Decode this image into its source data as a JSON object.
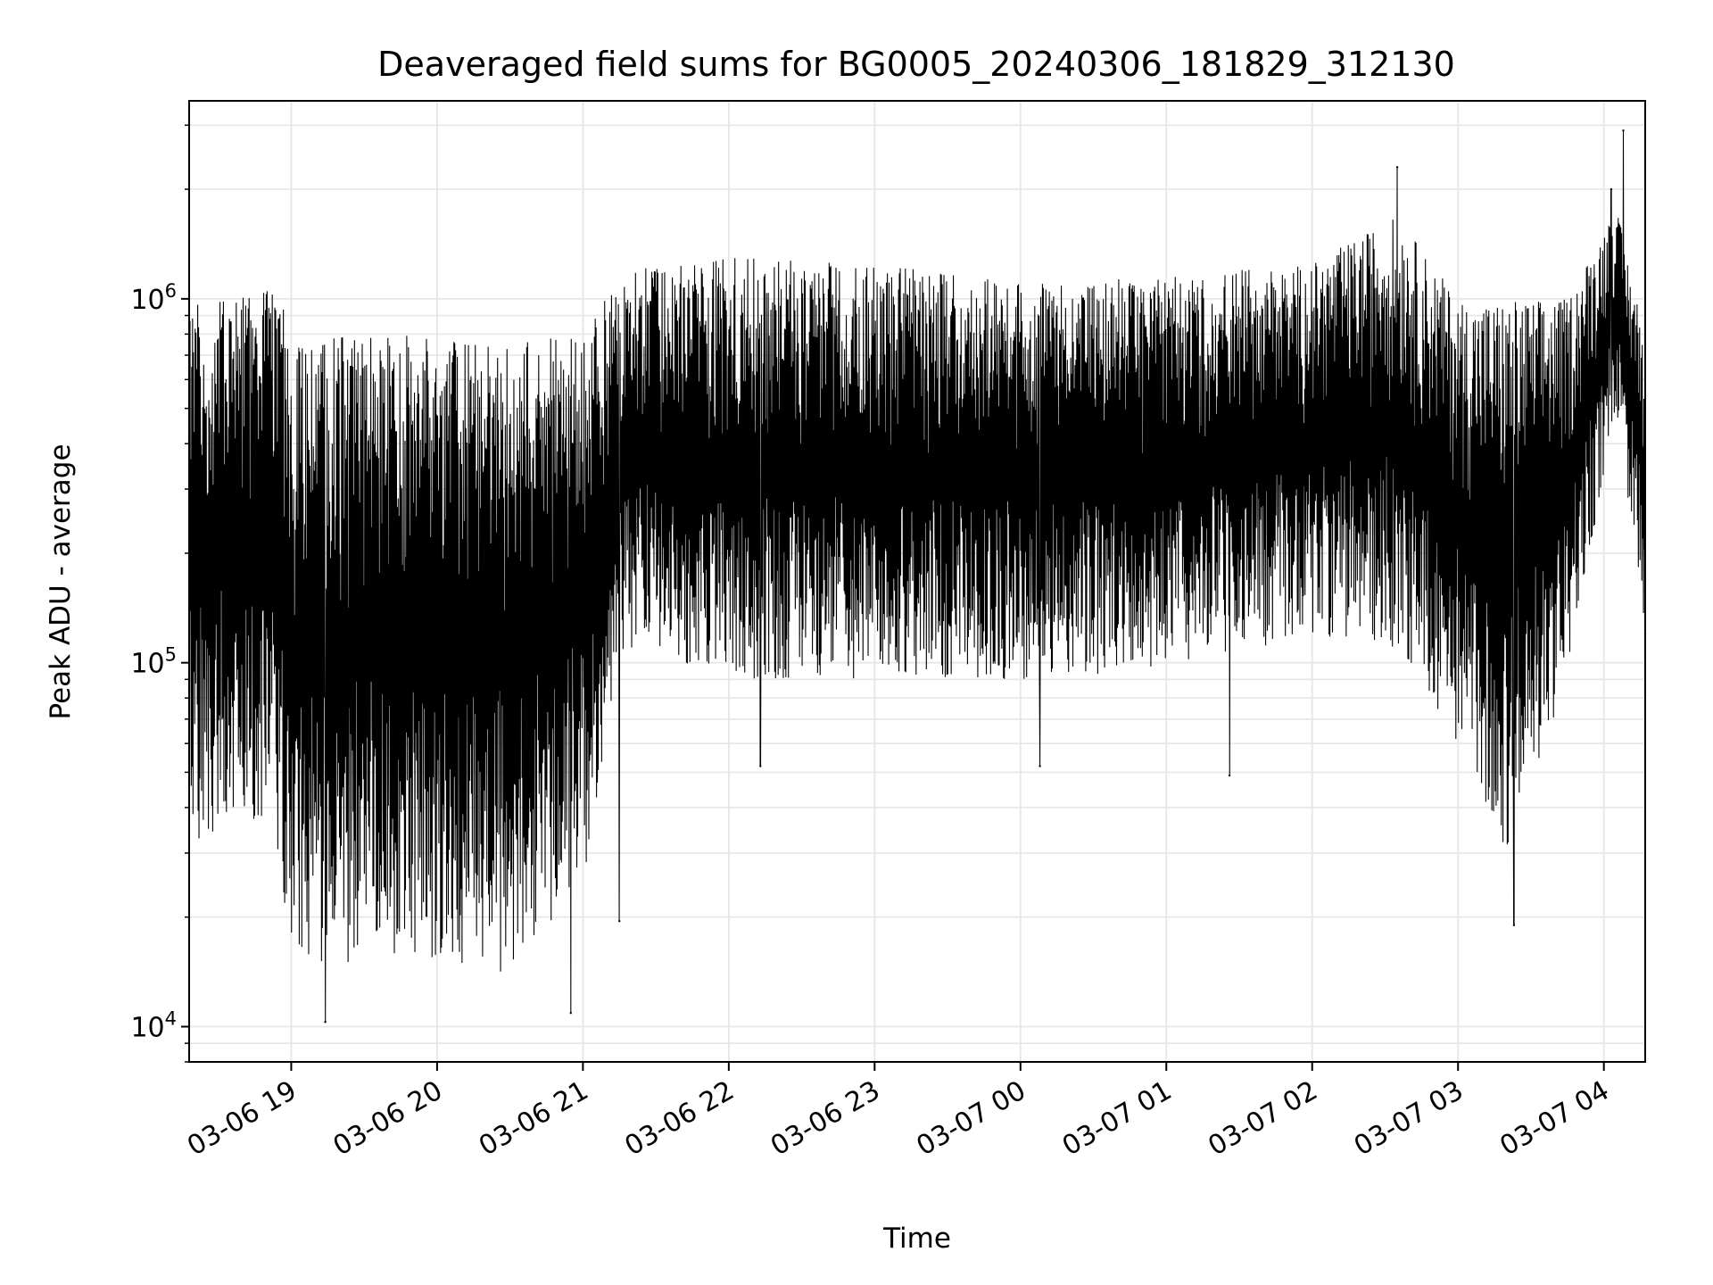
{
  "chart_data": {
    "type": "line",
    "title": "Deaveraged field sums for BG0005_20240306_181829_312130",
    "xlabel": "Time",
    "ylabel": "Peak ADU - average",
    "y_scale": "log",
    "ylim": [
      8000,
      3500000
    ],
    "xlim": [
      "2024-03-06 18:18",
      "2024-03-07 04:17"
    ],
    "grid": true,
    "x_ticks": [
      "03-06 19",
      "03-06 20",
      "03-06 21",
      "03-06 22",
      "03-06 23",
      "03-07 00",
      "03-07 01",
      "03-07 02",
      "03-07 03",
      "03-07 04"
    ],
    "y_ticks": [
      10000,
      100000,
      1000000
    ],
    "y_tick_labels": [
      {
        "base": "10",
        "exp": "4"
      },
      {
        "base": "10",
        "exp": "5"
      },
      {
        "base": "10",
        "exp": "6"
      }
    ],
    "series_color": "#000000",
    "envelope": [
      {
        "t": "2024-03-06 18:18",
        "low": 30000,
        "high": 950000
      },
      {
        "t": "2024-03-06 18:40",
        "low": 40000,
        "high": 1050000
      },
      {
        "t": "2024-03-06 18:55",
        "low": 30000,
        "high": 1100000
      },
      {
        "t": "2024-03-06 19:00",
        "low": 15000,
        "high": 750000
      },
      {
        "t": "2024-03-06 19:30",
        "low": 15000,
        "high": 800000
      },
      {
        "t": "2024-03-06 20:00",
        "low": 15000,
        "high": 800000
      },
      {
        "t": "2024-03-06 20:30",
        "low": 14000,
        "high": 750000
      },
      {
        "t": "2024-03-06 21:00",
        "low": 25000,
        "high": 800000
      },
      {
        "t": "2024-03-06 21:17",
        "low": 110000,
        "high": 1200000
      },
      {
        "t": "2024-03-06 22:00",
        "low": 90000,
        "high": 1300000
      },
      {
        "t": "2024-03-06 23:00",
        "low": 90000,
        "high": 1250000
      },
      {
        "t": "2024-03-07 00:00",
        "low": 90000,
        "high": 1100000
      },
      {
        "t": "2024-03-07 01:00",
        "low": 95000,
        "high": 1150000
      },
      {
        "t": "2024-03-07 02:00",
        "low": 120000,
        "high": 1250000
      },
      {
        "t": "2024-03-07 02:35",
        "low": 110000,
        "high": 1700000
      },
      {
        "t": "2024-03-07 03:00",
        "low": 60000,
        "high": 1000000
      },
      {
        "t": "2024-03-07 03:20",
        "low": 30000,
        "high": 1000000
      },
      {
        "t": "2024-03-07 03:45",
        "low": 90000,
        "high": 1000000
      },
      {
        "t": "2024-03-07 04:05",
        "low": 500000,
        "high": 1800000
      },
      {
        "t": "2024-03-07 04:17",
        "low": 120000,
        "high": 800000
      }
    ],
    "notable_points": [
      {
        "t": "2024-03-06 19:14",
        "y": 10300
      },
      {
        "t": "2024-03-06 20:55",
        "y": 10900
      },
      {
        "t": "2024-03-06 21:15",
        "y": 19500
      },
      {
        "t": "2024-03-06 22:13",
        "y": 52000
      },
      {
        "t": "2024-03-07 00:08",
        "y": 52000
      },
      {
        "t": "2024-03-07 01:26",
        "y": 49000
      },
      {
        "t": "2024-03-07 02:35",
        "y": 2300000
      },
      {
        "t": "2024-03-07 03:23",
        "y": 19000
      },
      {
        "t": "2024-03-07 04:03",
        "y": 2000000
      },
      {
        "t": "2024-03-07 04:08",
        "y": 2900000
      },
      {
        "t": "2024-03-07 04:17",
        "y": 120000
      }
    ]
  }
}
